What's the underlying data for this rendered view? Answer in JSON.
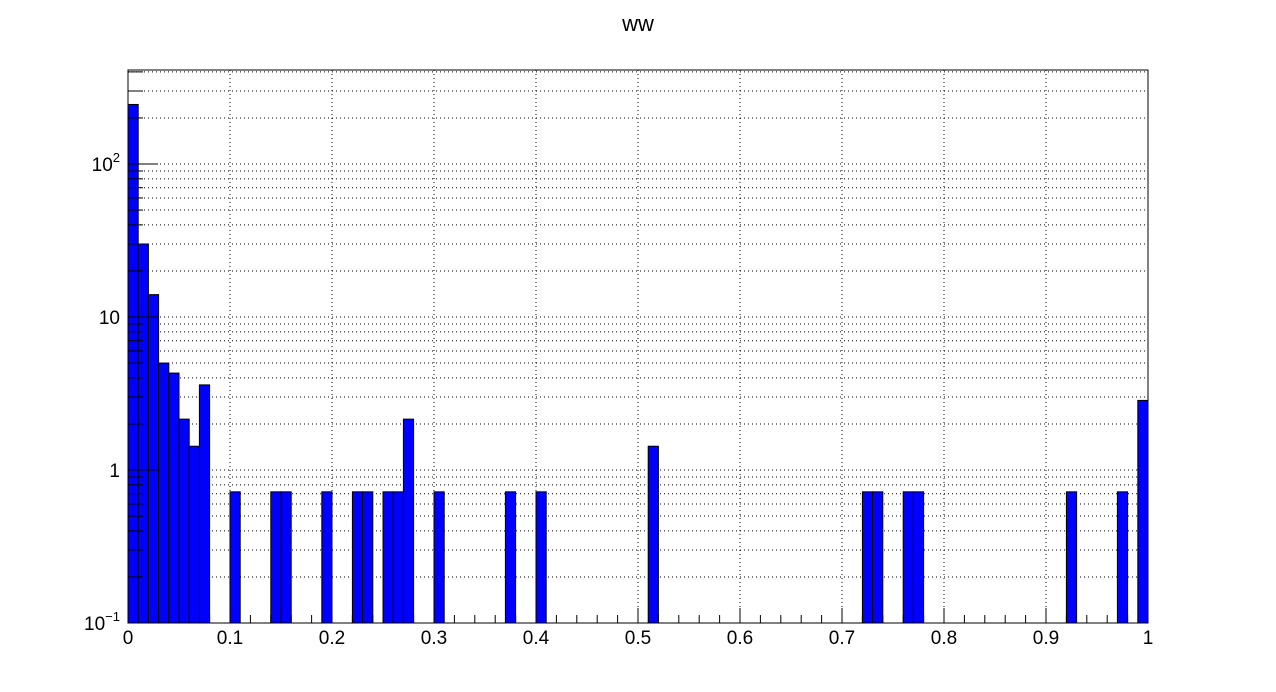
{
  "chart_data": {
    "type": "bar",
    "title": "ww",
    "xlabel": "",
    "ylabel": "",
    "xlim": [
      0,
      1
    ],
    "ylim": [
      0.1,
      350
    ],
    "y_scale": "log",
    "grid": true,
    "bin_width": 0.01,
    "bar_color": "#0000ff",
    "x_ticks": [
      {
        "value": 0,
        "label": "0"
      },
      {
        "value": 0.1,
        "label": "0.1"
      },
      {
        "value": 0.2,
        "label": "0.2"
      },
      {
        "value": 0.3,
        "label": "0.3"
      },
      {
        "value": 0.4,
        "label": "0.4"
      },
      {
        "value": 0.5,
        "label": "0.5"
      },
      {
        "value": 0.6,
        "label": "0.6"
      },
      {
        "value": 0.7,
        "label": "0.7"
      },
      {
        "value": 0.8,
        "label": "0.8"
      },
      {
        "value": 0.9,
        "label": "0.9"
      },
      {
        "value": 1,
        "label": "1"
      }
    ],
    "y_ticks": [
      {
        "value": 0.1,
        "base": "10",
        "exp": "−1"
      },
      {
        "value": 1,
        "base": "1",
        "exp": ""
      },
      {
        "value": 10,
        "base": "10",
        "exp": ""
      },
      {
        "value": 100,
        "base": "10",
        "exp": "2"
      }
    ],
    "bins": [
      {
        "x": 0.0,
        "value": 245
      },
      {
        "x": 0.01,
        "value": 30
      },
      {
        "x": 0.02,
        "value": 14
      },
      {
        "x": 0.03,
        "value": 5
      },
      {
        "x": 0.04,
        "value": 4.3
      },
      {
        "x": 0.05,
        "value": 2.15
      },
      {
        "x": 0.06,
        "value": 1.43
      },
      {
        "x": 0.07,
        "value": 3.6
      },
      {
        "x": 0.1,
        "value": 0.72
      },
      {
        "x": 0.14,
        "value": 0.72
      },
      {
        "x": 0.15,
        "value": 0.72
      },
      {
        "x": 0.19,
        "value": 0.72
      },
      {
        "x": 0.22,
        "value": 0.72
      },
      {
        "x": 0.23,
        "value": 0.72
      },
      {
        "x": 0.25,
        "value": 0.72
      },
      {
        "x": 0.26,
        "value": 0.72
      },
      {
        "x": 0.27,
        "value": 2.15
      },
      {
        "x": 0.3,
        "value": 0.72
      },
      {
        "x": 0.37,
        "value": 0.72
      },
      {
        "x": 0.4,
        "value": 0.72
      },
      {
        "x": 0.51,
        "value": 1.43
      },
      {
        "x": 0.72,
        "value": 0.72
      },
      {
        "x": 0.73,
        "value": 0.72
      },
      {
        "x": 0.76,
        "value": 0.72
      },
      {
        "x": 0.77,
        "value": 0.72
      },
      {
        "x": 0.92,
        "value": 0.72
      },
      {
        "x": 0.97,
        "value": 0.72
      },
      {
        "x": 0.99,
        "value": 2.85
      }
    ]
  }
}
